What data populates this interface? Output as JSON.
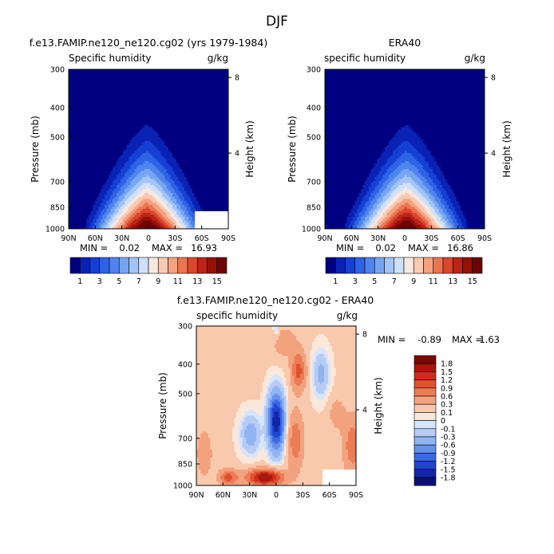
{
  "figure": {
    "title": "DJF"
  },
  "palettes": {
    "abs": [
      "#000080",
      "#0a22b4",
      "#1540d4",
      "#2f63e6",
      "#4f84ee",
      "#76a6f3",
      "#a2c4f7",
      "#cfe0fb",
      "#f7e9df",
      "#f8c9b3",
      "#f4a27f",
      "#eb7551",
      "#d9472d",
      "#bb2417",
      "#971008",
      "#6b0404"
    ],
    "diff": [
      "#0a0f7a",
      "#1324a5",
      "#1f45d0",
      "#3b68e4",
      "#6591ec",
      "#90b3f2",
      "#b6ccf5",
      "#d6e5fa",
      "#fbe8da",
      "#f8c9ad",
      "#f3a27e",
      "#ec7c56",
      "#e0502f",
      "#c8301b",
      "#a5180b",
      "#7c0505"
    ]
  },
  "chart_data": [
    {
      "type": "heatmap",
      "title": "f.e13.FAMIP.ne120_ne120.cg02 (yrs 1979-1984)",
      "variable": "Specific humidity",
      "units": "g/kg",
      "ylabel": "Pressure (mb)",
      "ylabel_right": "Height (km)",
      "x_ticks": [
        "90N",
        "60N",
        "30N",
        "0",
        "30S",
        "60S",
        "90S"
      ],
      "y_ticks": [
        "300",
        "400",
        "500",
        "700",
        "850",
        "1000"
      ],
      "y_ticks_right": [
        "8",
        "4"
      ],
      "ylim": [
        1000,
        300
      ],
      "min_label": "MIN =",
      "min": "0.02",
      "max_label": "MAX =",
      "max": "16.93",
      "colorbar_labels": [
        "1",
        "3",
        "5",
        "7",
        "9",
        "11",
        "13",
        "15"
      ],
      "contour_levels": [
        1,
        2,
        3,
        4,
        5,
        6,
        7,
        8,
        9,
        10,
        11,
        12,
        13,
        14,
        15
      ]
    },
    {
      "type": "heatmap",
      "title": "ERA40",
      "variable": "specific humidity",
      "units": "g/kg",
      "ylabel": "Pressure (mb)",
      "ylabel_right": "Height (km)",
      "x_ticks": [
        "90N",
        "60N",
        "30N",
        "0",
        "30S",
        "60S",
        "90S"
      ],
      "y_ticks": [
        "300",
        "400",
        "500",
        "700",
        "850",
        "1000"
      ],
      "y_ticks_right": [
        "8",
        "4"
      ],
      "ylim": [
        1000,
        300
      ],
      "min_label": "MIN =",
      "min": "0.02",
      "max_label": "MAX =",
      "max": "16.86",
      "colorbar_labels": [
        "1",
        "3",
        "5",
        "7",
        "9",
        "11",
        "13",
        "15"
      ],
      "contour_levels": [
        1,
        2,
        3,
        4,
        5,
        6,
        7,
        8,
        9,
        10,
        11,
        12,
        13,
        14,
        15
      ]
    },
    {
      "type": "heatmap",
      "title": "f.e13.FAMIP.ne120_ne120.cg02 - ERA40",
      "variable": "specific humidity",
      "units": "g/kg",
      "ylabel": "Pressure (mb)",
      "ylabel_right": "Height (km)",
      "x_ticks": [
        "90N",
        "60N",
        "30N",
        "0",
        "30S",
        "60S",
        "90S"
      ],
      "y_ticks": [
        "300",
        "400",
        "500",
        "700",
        "850",
        "1000"
      ],
      "y_ticks_right": [
        "8",
        "4"
      ],
      "ylim": [
        1000,
        300
      ],
      "min_label": "MIN =",
      "min": "-0.89",
      "max_label": "MAX =",
      "max": "1.63",
      "colorbar_labels": [
        "1.8",
        "1.5",
        "1.2",
        "0.9",
        "0.6",
        "0.3",
        "0.1",
        "0",
        "-0.1",
        "-0.3",
        "-0.6",
        "-0.9",
        "-1.2",
        "-1.5",
        "-1.8"
      ],
      "contour_levels": [
        -1.8,
        -1.5,
        -1.2,
        -0.9,
        -0.6,
        -0.3,
        -0.1,
        0,
        0.1,
        0.3,
        0.6,
        0.9,
        1.2,
        1.5,
        1.8
      ]
    }
  ]
}
